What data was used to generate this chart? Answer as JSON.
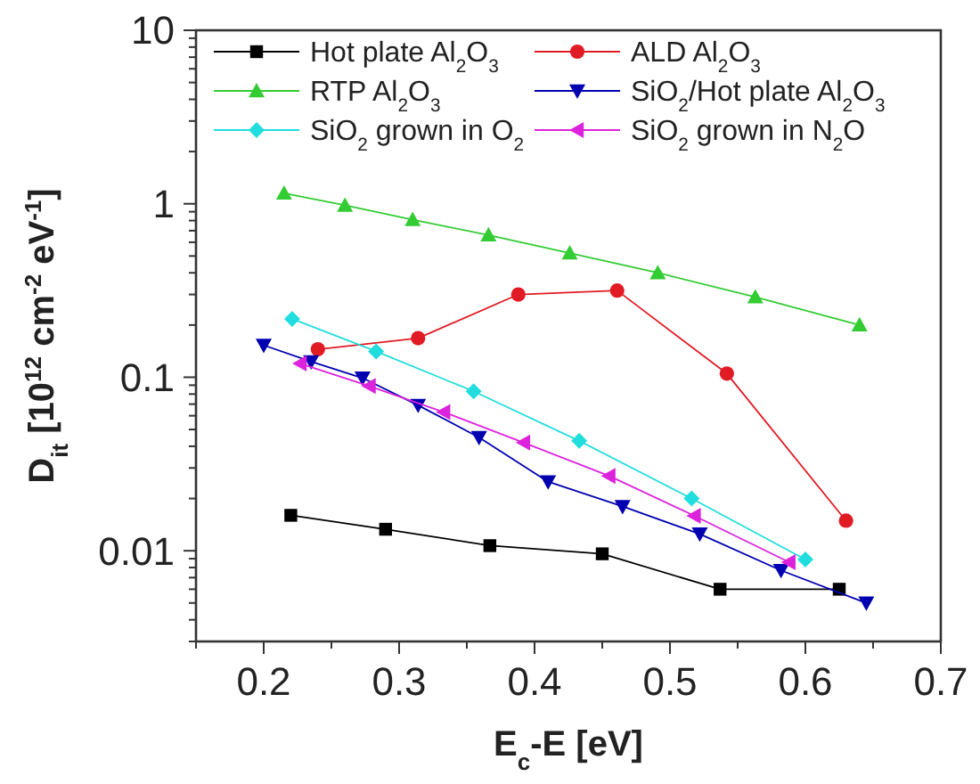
{
  "chart_data": {
    "type": "line",
    "xlabel": "E$_{c}$-E [eV]",
    "ylabel": "D$_{it}$ [10$^{12}$ cm$^{-2}$ eV$^{-1}$]",
    "log": "y",
    "xlim": [
      0.15,
      0.7
    ],
    "ylim": [
      0.003,
      10
    ],
    "xticks": [
      {
        "value": 0.15,
        "label": null
      },
      0.2,
      {
        "value": 0.25,
        "label": null
      },
      0.3,
      {
        "value": 0.35,
        "label": null
      },
      0.4,
      {
        "value": 0.45,
        "label": null
      },
      0.5,
      {
        "value": 0.55,
        "label": null
      },
      0.6,
      {
        "value": 0.65,
        "label": null
      },
      0.7
    ],
    "yticks": [
      {
        "value": 0.003,
        "label": null
      },
      {
        "value": 0.004,
        "label": null
      },
      {
        "value": 0.005,
        "label": null
      },
      {
        "value": 0.006,
        "label": null
      },
      {
        "value": 0.007,
        "label": null
      },
      {
        "value": 0.008,
        "label": null
      },
      {
        "value": 0.009,
        "label": null
      },
      0.01,
      {
        "value": 0.02,
        "label": null
      },
      {
        "value": 0.03,
        "label": null
      },
      {
        "value": 0.04,
        "label": null
      },
      {
        "value": 0.05,
        "label": null
      },
      {
        "value": 0.06,
        "label": null
      },
      {
        "value": 0.07,
        "label": null
      },
      {
        "value": 0.08,
        "label": null
      },
      {
        "value": 0.09,
        "label": null
      },
      0.1,
      {
        "value": 0.2,
        "label": null
      },
      {
        "value": 0.3,
        "label": null
      },
      {
        "value": 0.4,
        "label": null
      },
      {
        "value": 0.5,
        "label": null
      },
      {
        "value": 0.6,
        "label": null
      },
      {
        "value": 0.7,
        "label": null
      },
      {
        "value": 0.8,
        "label": null
      },
      {
        "value": 0.9,
        "label": null
      },
      1,
      {
        "value": 2,
        "label": null
      },
      {
        "value": 3,
        "label": null
      },
      {
        "value": 4,
        "label": null
      },
      {
        "value": 5,
        "label": null
      },
      {
        "value": 6,
        "label": null
      },
      {
        "value": 7,
        "label": null
      },
      {
        "value": 8,
        "label": null
      },
      {
        "value": 9,
        "label": null
      },
      10
    ],
    "grid": false,
    "legend": "top",
    "line_style": "solid",
    "series": [
      {
        "name": "Hot plate Al$_{2}$O$_{3}$",
        "color": "#000000",
        "marker": "square",
        "x": [
          0.22,
          0.29,
          0.367,
          0.45,
          0.537,
          0.625
        ],
        "values": [
          0.016,
          0.0133,
          0.0107,
          0.0096,
          0.006,
          0.006
        ]
      },
      {
        "name": "ALD Al$_{2}$O$_{3}$",
        "color": "#e01b24",
        "marker": "circle",
        "x": [
          0.24,
          0.314,
          0.388,
          0.461,
          0.542,
          0.63
        ],
        "values": [
          0.145,
          0.168,
          0.3,
          0.316,
          0.105,
          0.0149
        ]
      },
      {
        "name": "RTP Al$_{2}$O$_{3}$",
        "color": "#33cc33",
        "marker": "triangle",
        "x": [
          0.215,
          0.26,
          0.31,
          0.366,
          0.426,
          0.491,
          0.563,
          0.64
        ],
        "values": [
          1.15,
          0.98,
          0.81,
          0.66,
          0.52,
          0.4,
          0.29,
          0.2
        ]
      },
      {
        "name": "SiO$_{2}$/Hot plate Al$_{2}$O$_{3}$",
        "color": "#0000b0",
        "marker": "triangle-down",
        "x": [
          0.2,
          0.235,
          0.273,
          0.314,
          0.359,
          0.41,
          0.465,
          0.522,
          0.582,
          0.645
        ],
        "values": [
          0.153,
          0.123,
          0.099,
          0.069,
          0.045,
          0.025,
          0.018,
          0.0125,
          0.0077,
          0.005
        ]
      },
      {
        "name": "SiO$_{2}$ grown in O$_{2}$",
        "color": "#22dddd",
        "marker": "diamond",
        "x": [
          0.221,
          0.283,
          0.355,
          0.433,
          0.516,
          0.6
        ],
        "values": [
          0.217,
          0.141,
          0.083,
          0.043,
          0.02,
          0.0089
        ]
      },
      {
        "name": "SiO$_{2}$ grown in N$_{2}$O",
        "color": "#dd22dd",
        "marker": "triangle-left",
        "x": [
          0.227,
          0.278,
          0.333,
          0.392,
          0.455,
          0.518,
          0.588
        ],
        "values": [
          0.12,
          0.089,
          0.063,
          0.042,
          0.027,
          0.0159,
          0.0086
        ]
      }
    ]
  }
}
